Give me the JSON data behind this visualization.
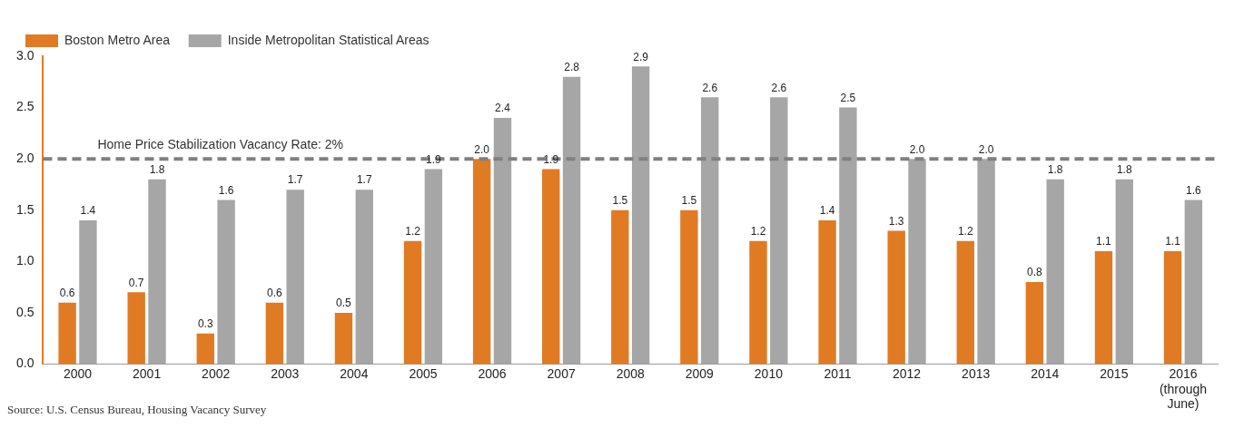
{
  "chart_data": {
    "type": "bar",
    "categories": [
      "2000",
      "2001",
      "2002",
      "2003",
      "2004",
      "2005",
      "2006",
      "2007",
      "2008",
      "2009",
      "2010",
      "2011",
      "2012",
      "2013",
      "2014",
      "2015",
      "2016 (through June)"
    ],
    "series": [
      {
        "name": "Boston Metro Area",
        "color": "#e07b24",
        "values": [
          0.6,
          0.7,
          0.3,
          0.6,
          0.5,
          1.2,
          2.0,
          1.9,
          1.5,
          1.5,
          1.2,
          1.4,
          1.3,
          1.2,
          0.8,
          1.1,
          1.1
        ],
        "value_labels": [
          "0.6",
          "0.7",
          "0.3",
          "0.6",
          "0.5",
          "1.2",
          "2.0",
          "1.9",
          "1.5",
          "1.5",
          "1.2",
          "1.4",
          "1.3",
          "1.2",
          "0.8",
          "1.1",
          "1.1"
        ]
      },
      {
        "name": "Inside Metropolitan Statistical Areas",
        "color": "#a6a6a6",
        "values": [
          1.4,
          1.8,
          1.6,
          1.7,
          1.7,
          1.9,
          2.4,
          2.8,
          2.9,
          2.6,
          2.6,
          2.5,
          2.0,
          2.0,
          1.8,
          1.8,
          1.6
        ],
        "value_labels": [
          "1.4",
          "1.8",
          "1.6",
          "1.7",
          "1.7",
          "1.9",
          "2.4",
          "2.8",
          "2.9",
          "2.6",
          "2.6",
          "2.5",
          "2.0",
          "2.0",
          "1.8",
          "1.8",
          "1.6"
        ]
      }
    ],
    "ylim": [
      0,
      3
    ],
    "yticks": [
      {
        "value": 0,
        "label": "0.0"
      },
      {
        "value": 0.5,
        "label": "0.5"
      },
      {
        "value": 1,
        "label": "1.0"
      },
      {
        "value": 1.5,
        "label": "1.5"
      },
      {
        "value": 2,
        "label": "2.0"
      },
      {
        "value": 2.5,
        "label": "2.5"
      },
      {
        "value": 3,
        "label": "3.0"
      }
    ],
    "ref_lines": [
      {
        "axis": "y",
        "value": 2,
        "label": "Home Price Stabilization Vacancy Rate: 2%",
        "color": "#808080",
        "line_style": "dashed"
      }
    ],
    "legend": "top left",
    "grid": false,
    "annotations": [
      "Source: U.S. Census Bureau, Housing Vacancy Survey"
    ]
  }
}
